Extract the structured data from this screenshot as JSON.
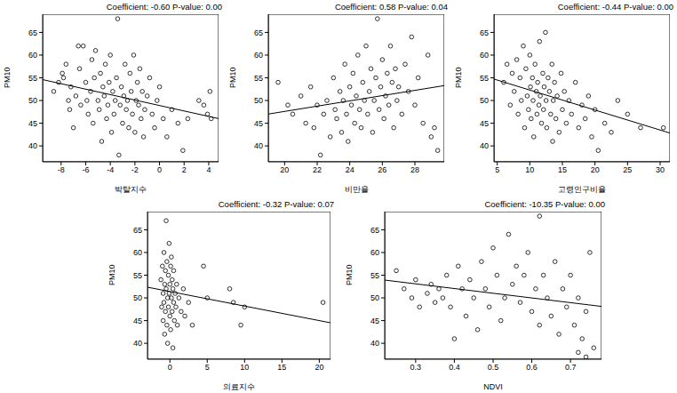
{
  "chart_data": [
    {
      "type": "scatter",
      "title": "Coefficient: -0.60 P-value: 0.00",
      "x_label": "박탈지수",
      "y_label": "PM10",
      "color": "#000000",
      "marker": "open_circle",
      "x": [
        -8.6,
        -8.2,
        -7.9,
        -7.8,
        -7.6,
        -7.4,
        -7.3,
        -7.2,
        -7.0,
        -6.8,
        -6.6,
        -6.5,
        -6.4,
        -6.2,
        -6.0,
        -5.9,
        -5.8,
        -5.6,
        -5.5,
        -5.4,
        -5.3,
        -5.2,
        -5.0,
        -4.9,
        -4.8,
        -4.7,
        -4.6,
        -4.5,
        -4.4,
        -4.3,
        -4.2,
        -4.1,
        -4.0,
        -3.9,
        -3.8,
        -3.7,
        -3.6,
        -3.5,
        -3.4,
        -3.3,
        -3.2,
        -3.1,
        -3.0,
        -2.9,
        -2.8,
        -2.7,
        -2.6,
        -2.5,
        -2.4,
        -2.3,
        -2.2,
        -2.1,
        -2.0,
        -1.9,
        -1.8,
        -1.7,
        -1.6,
        -1.5,
        -1.4,
        -1.3,
        -1.2,
        -1.0,
        -0.8,
        -0.6,
        -0.4,
        -0.2,
        0.0,
        0.3,
        0.6,
        1.0,
        1.5,
        1.9,
        2.3,
        3.2,
        3.6,
        3.9,
        4.1,
        4.2
      ],
      "values": [
        52,
        54,
        56,
        55,
        58,
        50,
        48,
        53,
        44,
        51,
        62,
        57,
        49,
        62,
        54,
        50,
        47,
        52,
        59,
        45,
        55,
        61,
        50,
        48,
        56,
        41,
        53,
        51,
        58,
        46,
        49,
        54,
        60,
        43,
        52,
        47,
        50,
        55,
        68,
        38,
        49,
        53,
        45,
        51,
        58,
        48,
        50,
        44,
        56,
        52,
        47,
        60,
        43,
        50,
        54,
        49,
        57,
        46,
        52,
        42,
        48,
        51,
        55,
        47,
        44,
        50,
        53,
        46,
        42,
        48,
        45,
        39,
        46,
        50,
        49,
        47,
        52,
        46
      ],
      "xlim": [
        -9.5,
        4.8
      ],
      "xticks": [
        -8,
        -6,
        -4,
        -2,
        0,
        2,
        4
      ],
      "ylim": [
        36.5,
        69
      ],
      "yticks": [
        40,
        45,
        50,
        55,
        60,
        65
      ],
      "fit": {
        "intercept": 48.9,
        "slope": -0.6
      }
    },
    {
      "type": "scatter",
      "title": "Coefficient: 0.58 P-value: 0.04",
      "x_label": "비만율",
      "y_label": "PM10",
      "color": "#000000",
      "marker": "open_circle",
      "x": [
        19.6,
        20.2,
        20.5,
        21.0,
        21.3,
        21.6,
        21.8,
        22.0,
        22.2,
        22.4,
        22.6,
        22.8,
        23.0,
        23.1,
        23.2,
        23.4,
        23.5,
        23.6,
        23.7,
        23.8,
        23.9,
        24.0,
        24.1,
        24.2,
        24.3,
        24.4,
        24.5,
        24.6,
        24.7,
        24.8,
        24.9,
        25.0,
        25.1,
        25.2,
        25.3,
        25.4,
        25.5,
        25.6,
        25.7,
        25.8,
        25.9,
        26.0,
        26.1,
        26.2,
        26.3,
        26.4,
        26.5,
        26.6,
        26.7,
        26.8,
        26.9,
        27.0,
        27.2,
        27.4,
        27.6,
        27.8,
        28.0,
        28.2,
        28.5,
        28.8,
        29.0,
        29.2,
        29.4
      ],
      "values": [
        54,
        49,
        47,
        51,
        45,
        53,
        44,
        49,
        38,
        47,
        50,
        42,
        55,
        48,
        46,
        52,
        43,
        50,
        58,
        47,
        41,
        53,
        49,
        56,
        45,
        51,
        60,
        48,
        44,
        54,
        50,
        62,
        47,
        52,
        57,
        43,
        50,
        55,
        68,
        48,
        53,
        59,
        46,
        51,
        56,
        49,
        62,
        54,
        44,
        57,
        50,
        53,
        47,
        58,
        52,
        64,
        49,
        55,
        45,
        60,
        42,
        44,
        39
      ],
      "xlim": [
        19,
        29.8
      ],
      "xticks": [
        20,
        22,
        24,
        26,
        28
      ],
      "ylim": [
        36.5,
        69
      ],
      "yticks": [
        40,
        45,
        50,
        55,
        60,
        65
      ],
      "fit": {
        "intercept": 36.0,
        "slope": 0.58
      }
    },
    {
      "type": "scatter",
      "title": "Coefficient: -0.44 P-value: 0.00",
      "x_label": "고령인구비율",
      "y_label": "PM10",
      "color": "#000000",
      "marker": "open_circle",
      "x": [
        6.0,
        6.5,
        7.0,
        7.3,
        7.6,
        8.0,
        8.2,
        8.5,
        8.7,
        9.0,
        9.2,
        9.4,
        9.6,
        9.8,
        10.0,
        10.1,
        10.2,
        10.4,
        10.5,
        10.6,
        10.8,
        11.0,
        11.1,
        11.2,
        11.4,
        11.5,
        11.6,
        11.8,
        12.0,
        12.1,
        12.2,
        12.4,
        12.5,
        12.6,
        12.8,
        13.0,
        13.2,
        13.4,
        13.5,
        13.6,
        13.8,
        14.0,
        14.2,
        14.5,
        14.8,
        15.0,
        15.3,
        15.6,
        16.0,
        16.4,
        17.0,
        17.5,
        18.0,
        18.5,
        19.0,
        19.5,
        20.0,
        20.5,
        21.5,
        22.5,
        23.5,
        25.0,
        27.0,
        30.5
      ],
      "values": [
        54,
        58,
        49,
        56,
        52,
        59,
        47,
        55,
        50,
        62,
        44,
        57,
        51,
        48,
        60,
        53,
        46,
        55,
        50,
        42,
        58,
        52,
        47,
        54,
        49,
        63,
        51,
        45,
        56,
        48,
        53,
        65,
        50,
        44,
        55,
        52,
        47,
        58,
        41,
        50,
        54,
        46,
        51,
        43,
        56,
        48,
        52,
        45,
        50,
        47,
        54,
        44,
        49,
        46,
        51,
        42,
        48,
        39,
        45,
        43,
        50,
        47,
        44,
        44
      ],
      "xlim": [
        4.5,
        31.5
      ],
      "xticks": [
        5,
        10,
        15,
        20,
        25,
        30
      ],
      "ylim": [
        36.5,
        69
      ],
      "yticks": [
        40,
        45,
        50,
        55,
        60,
        65
      ],
      "fit": {
        "intercept": 56.7,
        "slope": -0.44
      }
    },
    {
      "type": "scatter",
      "title": "Coefficient: -0.32 P-value: 0.07",
      "x_label": "의료지수",
      "y_label": "PM10",
      "color": "#000000",
      "marker": "open_circle",
      "x": [
        -1.2,
        -1.1,
        -1.0,
        -0.9,
        -0.9,
        -0.8,
        -0.8,
        -0.7,
        -0.7,
        -0.6,
        -0.6,
        -0.5,
        -0.5,
        -0.4,
        -0.4,
        -0.3,
        -0.3,
        -0.2,
        -0.2,
        -0.1,
        -0.1,
        0.0,
        0.0,
        0.1,
        0.1,
        0.2,
        0.2,
        0.3,
        0.3,
        0.4,
        0.4,
        0.5,
        0.5,
        0.6,
        0.7,
        0.8,
        0.9,
        1.0,
        1.2,
        1.5,
        1.8,
        2.0,
        2.5,
        3.0,
        4.5,
        5.0,
        8.0,
        8.5,
        9.5,
        10.0,
        20.5
      ],
      "values": [
        54,
        48,
        57,
        51,
        45,
        60,
        49,
        53,
        42,
        56,
        47,
        67,
        52,
        44,
        58,
        50,
        40,
        55,
        48,
        62,
        51,
        46,
        53,
        57,
        43,
        50,
        59,
        47,
        54,
        39,
        52,
        49,
        56,
        45,
        51,
        48,
        53,
        44,
        50,
        47,
        52,
        46,
        49,
        44,
        57,
        50,
        52,
        49,
        44,
        48,
        49
      ],
      "xlim": [
        -3,
        21.5
      ],
      "xticks": [
        0,
        5,
        10,
        15,
        20
      ],
      "ylim": [
        36.5,
        69
      ],
      "yticks": [
        40,
        45,
        50,
        55,
        60,
        65
      ],
      "fit": {
        "intercept": 51.4,
        "slope": -0.32
      }
    },
    {
      "type": "scatter",
      "title": "Coefficient: -10.35 P-value: 0.00",
      "x_label": "NDVI",
      "y_label": "PM10",
      "color": "#000000",
      "marker": "open_circle",
      "x": [
        0.25,
        0.27,
        0.29,
        0.3,
        0.31,
        0.33,
        0.34,
        0.35,
        0.36,
        0.37,
        0.38,
        0.39,
        0.4,
        0.41,
        0.42,
        0.43,
        0.44,
        0.45,
        0.46,
        0.47,
        0.48,
        0.49,
        0.5,
        0.51,
        0.52,
        0.53,
        0.54,
        0.55,
        0.56,
        0.57,
        0.58,
        0.59,
        0.6,
        0.61,
        0.62,
        0.62,
        0.63,
        0.64,
        0.65,
        0.66,
        0.67,
        0.68,
        0.69,
        0.7,
        0.71,
        0.72,
        0.73,
        0.74,
        0.75,
        0.76,
        0.74,
        0.72
      ],
      "values": [
        56,
        52,
        50,
        54,
        48,
        51,
        53,
        49,
        52,
        50,
        55,
        48,
        41,
        57,
        52,
        46,
        54,
        50,
        43,
        58,
        52,
        48,
        61,
        55,
        45,
        50,
        64,
        53,
        57,
        49,
        55,
        60,
        47,
        52,
        68,
        44,
        55,
        50,
        46,
        58,
        42,
        52,
        48,
        55,
        44,
        50,
        41,
        47,
        60,
        39,
        37,
        38
      ],
      "xlim": [
        0.22,
        0.78
      ],
      "xticks": [
        0.3,
        0.4,
        0.5,
        0.6,
        0.7
      ],
      "ylim": [
        36.5,
        69
      ],
      "yticks": [
        40,
        45,
        50,
        55,
        60,
        65
      ],
      "fit": {
        "intercept": 56.2,
        "slope": -10.35
      }
    }
  ]
}
